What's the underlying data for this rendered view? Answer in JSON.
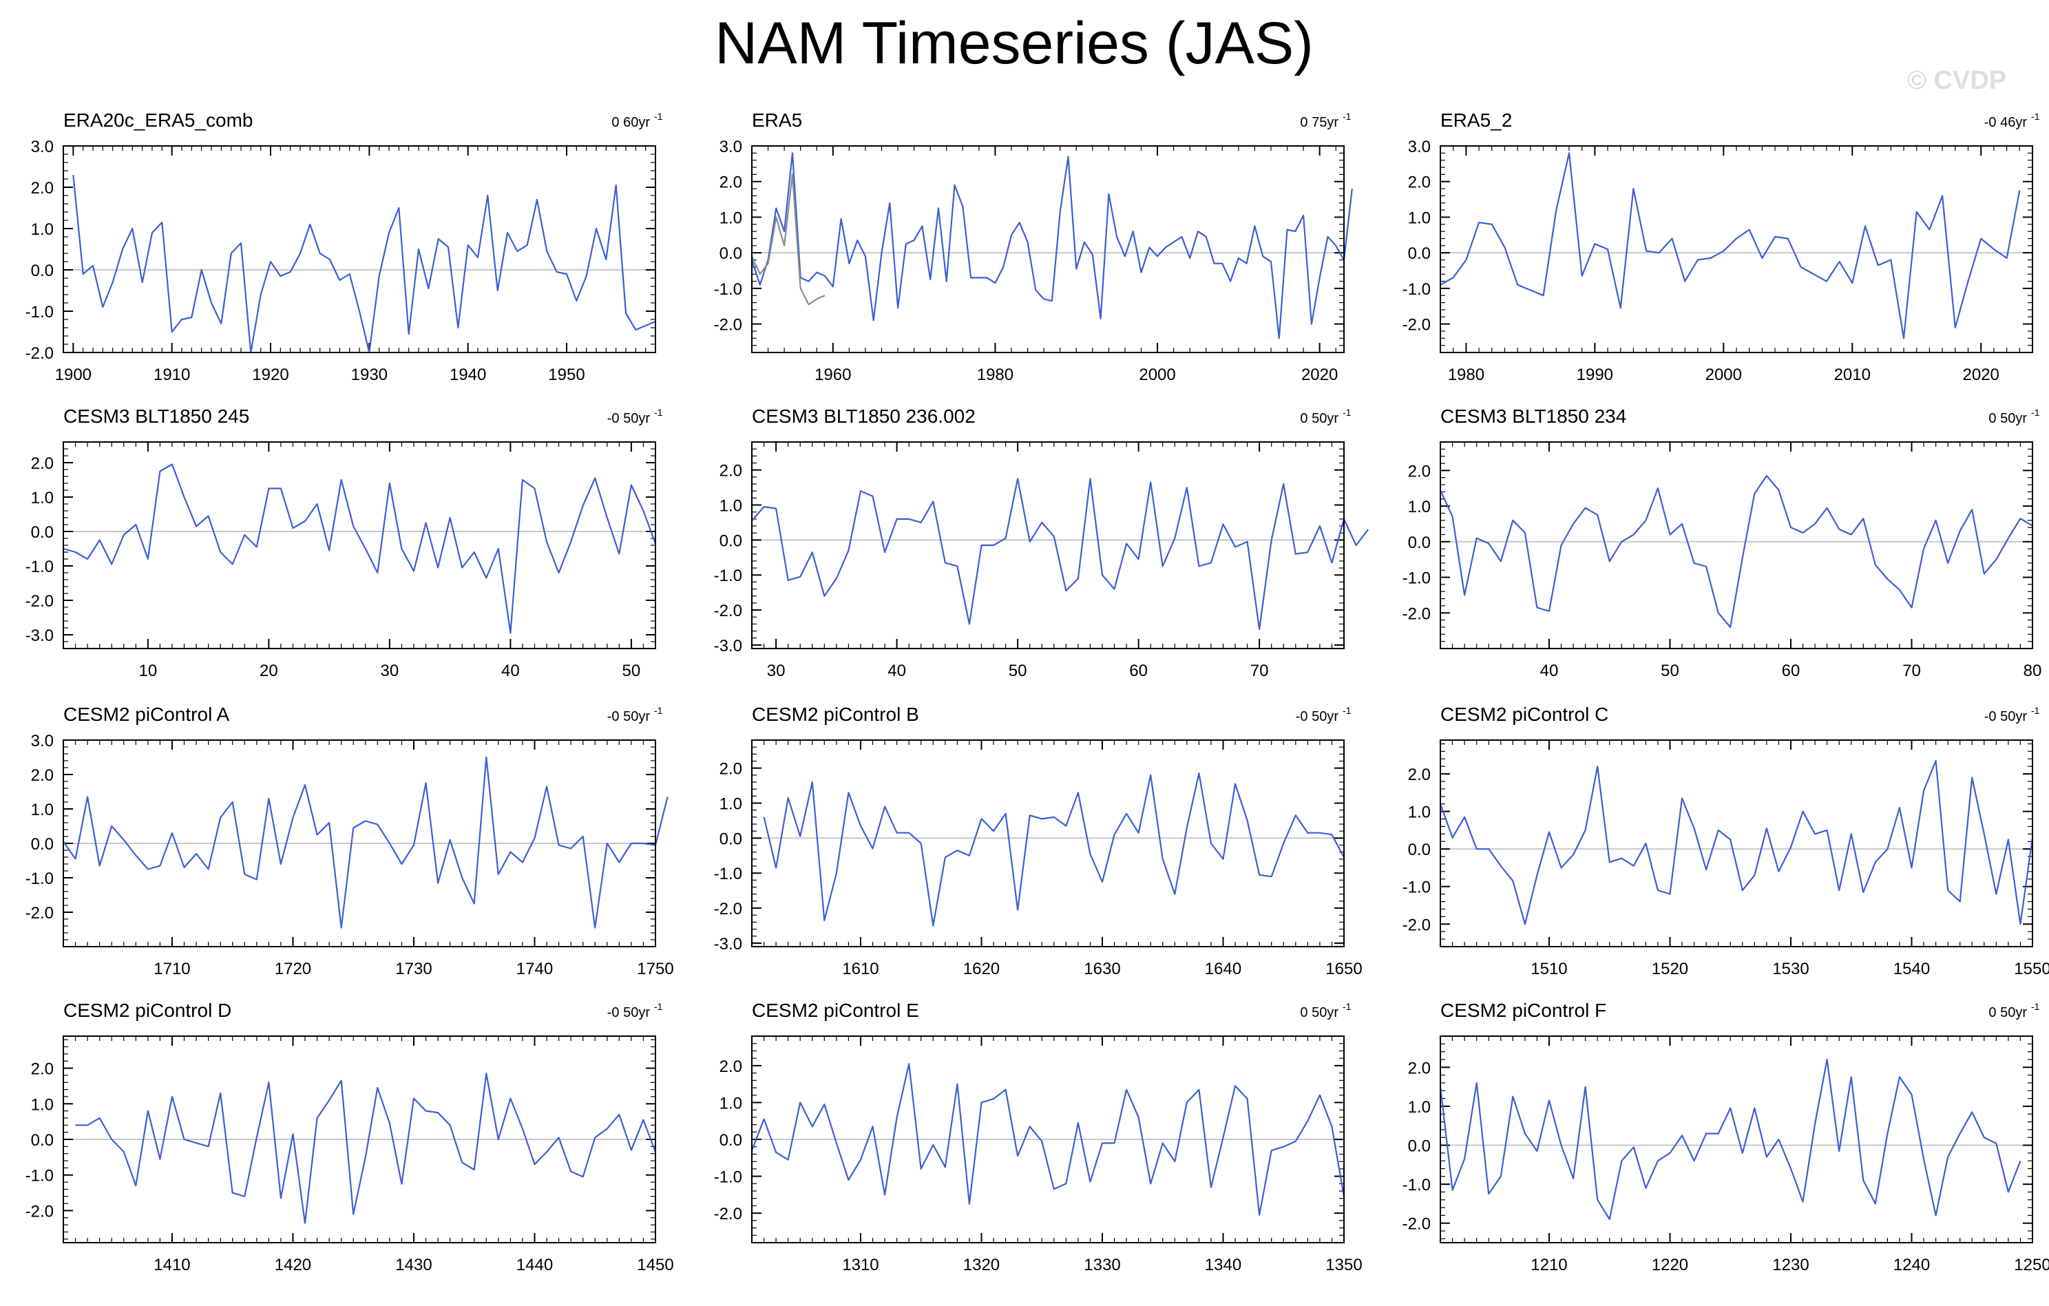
{
  "title": "NAM Timeseries (JAS)",
  "credit": "© CVDP",
  "colors": {
    "line": "#3a5fd6",
    "second_line": "#8c8c8c",
    "zero": "#c8c8c8",
    "frame": "#000000"
  },
  "chart_data": [
    {
      "type": "line",
      "title": "ERA20c_ERA5_comb",
      "trend": "0 60yr",
      "xlabel": "",
      "ylabel": "",
      "xlim": [
        1899,
        1959
      ],
      "ylim": [
        -2,
        3
      ],
      "yticks": [
        3.0,
        2.0,
        1.0,
        0.0,
        -1.0,
        -2.0
      ],
      "xticks": [
        1900,
        1910,
        1920,
        1930,
        1940,
        1950
      ],
      "series": [
        {
          "values": [
            2.3,
            -0.1,
            0.1,
            -0.9,
            -0.3,
            0.5,
            1.0,
            -0.3,
            0.9,
            1.15,
            -1.5,
            -1.2,
            -1.15,
            0.0,
            -0.8,
            -1.3,
            0.4,
            0.65,
            -2.0,
            -0.6,
            0.2,
            -0.15,
            -0.05,
            0.4,
            1.1,
            0.4,
            0.25,
            -0.25,
            -0.1,
            -1.0,
            -2.0,
            -0.15,
            0.9,
            1.5,
            -1.55,
            0.5,
            -0.45,
            0.75,
            0.55,
            -1.4,
            0.6,
            0.3,
            1.8,
            -0.5,
            0.9,
            0.45,
            0.6,
            1.7,
            0.45,
            -0.05,
            -0.1,
            -0.75,
            -0.15,
            1.0,
            0.25,
            2.05,
            -1.05,
            -1.45,
            -1.35,
            -1.25
          ],
          "x0": 1900
        }
      ]
    },
    {
      "type": "line",
      "title": "ERA5",
      "trend": "0 75yr",
      "xlabel": "",
      "ylabel": "",
      "xlim": [
        1950,
        2023
      ],
      "ylim": [
        -2.8,
        3.0
      ],
      "yticks": [
        3.0,
        2.0,
        1.0,
        0.0,
        -1.0,
        -2.0
      ],
      "xticks": [
        1960,
        1980,
        2000,
        2020
      ],
      "series": [
        {
          "values": [
            -0.2,
            -0.9,
            -0.2,
            1.25,
            0.6,
            2.8,
            -0.7,
            -0.8,
            -0.55,
            -0.65,
            -0.95,
            0.95,
            -0.3,
            0.35,
            -0.1,
            -1.9,
            0.0,
            1.4,
            -1.55,
            0.25,
            0.35,
            0.75,
            -0.75,
            1.25,
            -0.8,
            1.9,
            1.3,
            -0.7,
            -0.7,
            -0.7,
            -0.85,
            -0.4,
            0.5,
            0.85,
            0.3,
            -1.05,
            -1.3,
            -1.35,
            1.15,
            2.7,
            -0.45,
            0.3,
            -0.05,
            -1.85,
            1.65,
            0.45,
            -0.1,
            0.6,
            -0.55,
            0.15,
            -0.1,
            0.15,
            0.3,
            0.45,
            -0.15,
            0.6,
            0.45,
            -0.3,
            -0.3,
            -0.8,
            -0.15,
            -0.3,
            0.75,
            -0.1,
            -0.25,
            -2.4,
            0.65,
            0.6,
            1.05,
            -2.0,
            -0.7,
            0.45,
            0.2,
            -0.2,
            1.8
          ],
          "x0": 1950
        },
        {
          "values": [
            -0.1,
            -0.6,
            -0.3,
            1.0,
            0.2,
            2.2,
            -1.0,
            -1.45,
            -1.3,
            -1.2
          ],
          "x0": 1950
        }
      ]
    },
    {
      "type": "line",
      "title": "ERA5_2",
      "trend": "-0 46yr",
      "xlabel": "",
      "ylabel": "",
      "xlim": [
        1978,
        2024
      ],
      "ylim": [
        -2.8,
        3.0
      ],
      "yticks": [
        3.0,
        2.0,
        1.0,
        0.0,
        -1.0,
        -2.0
      ],
      "xticks": [
        1980,
        1990,
        2000,
        2010,
        2020
      ],
      "series": [
        {
          "values": [
            -0.9,
            -0.7,
            -0.2,
            0.85,
            0.8,
            0.15,
            -0.9,
            -1.05,
            -1.2,
            1.2,
            2.8,
            -0.65,
            0.25,
            0.1,
            -1.55,
            1.8,
            0.05,
            0.0,
            0.4,
            -0.8,
            -0.2,
            -0.15,
            0.05,
            0.4,
            0.65,
            -0.15,
            0.45,
            0.4,
            -0.4,
            -0.6,
            -0.8,
            -0.25,
            -0.85,
            0.75,
            -0.35,
            -0.2,
            -2.4,
            1.15,
            0.65,
            1.6,
            -2.1,
            -0.8,
            0.4,
            0.1,
            -0.15,
            1.75
          ],
          "x0": 1978
        }
      ]
    },
    {
      "type": "line",
      "title": "CESM3 BLT1850 245",
      "trend": "-0 50yr",
      "xlabel": "",
      "ylabel": "",
      "xlim": [
        3,
        52
      ],
      "ylim": [
        -3.4,
        2.6
      ],
      "yticks": [
        2.0,
        1.0,
        0.0,
        -1.0,
        -2.0,
        -3.0
      ],
      "xticks": [
        10,
        20,
        30,
        40,
        50
      ],
      "series": [
        {
          "values": [
            -0.5,
            -0.6,
            -0.8,
            -0.25,
            -0.95,
            -0.1,
            0.2,
            -0.8,
            1.75,
            1.95,
            1.0,
            0.15,
            0.45,
            -0.6,
            -0.95,
            -0.1,
            -0.45,
            1.25,
            1.25,
            0.1,
            0.3,
            0.8,
            -0.55,
            1.5,
            0.15,
            -0.5,
            -1.2,
            1.4,
            -0.5,
            -1.15,
            0.25,
            -1.05,
            0.4,
            -1.05,
            -0.6,
            -1.35,
            -0.5,
            -2.95,
            1.5,
            1.25,
            -0.3,
            -1.2,
            -0.3,
            0.75,
            1.55,
            0.4,
            -0.65,
            1.35,
            0.6,
            -0.35
          ],
          "x0": 3
        }
      ]
    },
    {
      "type": "line",
      "title": "CESM3 BLT1850 236.002",
      "trend": "0 50yr",
      "xlabel": "",
      "ylabel": "",
      "xlim": [
        28,
        77
      ],
      "ylim": [
        -3.1,
        2.8
      ],
      "yticks": [
        2.0,
        1.0,
        0.0,
        -1.0,
        -2.0,
        -3.0
      ],
      "xticks": [
        30,
        40,
        50,
        60,
        70
      ],
      "series": [
        {
          "values": [
            0.55,
            0.95,
            0.9,
            -1.15,
            -1.05,
            -0.35,
            -1.6,
            -1.1,
            -0.3,
            1.4,
            1.25,
            -0.35,
            0.6,
            0.6,
            0.5,
            1.1,
            -0.65,
            -0.75,
            -2.4,
            -0.15,
            -0.15,
            0.05,
            1.75,
            -0.05,
            0.5,
            0.1,
            -1.45,
            -1.1,
            1.75,
            -1.0,
            -1.4,
            -0.1,
            -0.55,
            1.65,
            -0.75,
            0.05,
            1.5,
            -0.75,
            -0.65,
            0.45,
            -0.2,
            -0.05,
            -2.55,
            0.0,
            1.6,
            -0.4,
            -0.35,
            0.4,
            -0.65,
            0.6,
            -0.15,
            0.3
          ],
          "x0": 28
        }
      ]
    },
    {
      "type": "line",
      "title": "CESM3 BLT1850 234",
      "trend": "0 50yr",
      "xlabel": "",
      "ylabel": "",
      "xlim": [
        31,
        80
      ],
      "ylim": [
        -3.0,
        2.8
      ],
      "yticks": [
        2.0,
        1.0,
        0.0,
        -1.0,
        -2.0
      ],
      "xticks": [
        40,
        50,
        60,
        70,
        80
      ],
      "series": [
        {
          "values": [
            1.45,
            0.7,
            -1.5,
            0.1,
            -0.05,
            -0.55,
            0.6,
            0.25,
            -1.85,
            -1.95,
            -0.1,
            0.5,
            0.95,
            0.75,
            -0.55,
            0.0,
            0.2,
            0.6,
            1.5,
            0.2,
            0.5,
            -0.6,
            -0.7,
            -2.0,
            -2.4,
            -0.45,
            1.35,
            1.85,
            1.45,
            0.4,
            0.25,
            0.5,
            0.95,
            0.35,
            0.2,
            0.65,
            -0.65,
            -1.05,
            -1.35,
            -1.85,
            -0.2,
            0.6,
            -0.6,
            0.3,
            0.9,
            -0.9,
            -0.5,
            0.1,
            0.65,
            0.45
          ],
          "x0": 31
        }
      ]
    },
    {
      "type": "line",
      "title": "CESM2 piControl A",
      "trend": "-0 50yr",
      "xlabel": "",
      "ylabel": "",
      "xlim": [
        1701,
        1750
      ],
      "ylim": [
        -3.0,
        3.0
      ],
      "yticks": [
        3.0,
        2.0,
        1.0,
        0.0,
        -1.0,
        -2.0
      ],
      "xticks": [
        1710,
        1720,
        1730,
        1740,
        1750
      ],
      "series": [
        {
          "values": [
            0.05,
            -0.45,
            1.35,
            -0.65,
            0.5,
            0.1,
            -0.35,
            -0.75,
            -0.65,
            0.3,
            -0.7,
            -0.3,
            -0.75,
            0.75,
            1.2,
            -0.9,
            -1.05,
            1.3,
            -0.6,
            0.75,
            1.7,
            0.25,
            0.6,
            -2.45,
            0.45,
            0.65,
            0.55,
            0.0,
            -0.6,
            -0.05,
            1.75,
            -1.15,
            0.1,
            -1.0,
            -1.75,
            2.5,
            -0.9,
            -0.25,
            -0.55,
            0.15,
            1.65,
            -0.05,
            -0.15,
            0.2,
            -2.45,
            0.0,
            -0.55,
            0.0,
            0.0,
            -0.05,
            1.35
          ],
          "x0": 1701
        }
      ]
    },
    {
      "type": "line",
      "title": "CESM2 piControl B",
      "trend": "-0 50yr",
      "xlabel": "",
      "ylabel": "",
      "xlim": [
        1601,
        1650
      ],
      "ylim": [
        -3.1,
        2.8
      ],
      "yticks": [
        2.0,
        1.0,
        0.0,
        -1.0,
        -2.0,
        -3.0
      ],
      "xticks": [
        1610,
        1620,
        1630,
        1640,
        1650
      ],
      "series": [
        {
          "values": [
            0.6,
            -0.85,
            1.15,
            0.05,
            1.6,
            -2.35,
            -1.0,
            1.3,
            0.35,
            -0.3,
            0.9,
            0.15,
            0.15,
            -0.15,
            -2.5,
            -0.55,
            -0.35,
            -0.5,
            0.55,
            0.2,
            0.7,
            -2.05,
            0.65,
            0.55,
            0.6,
            0.35,
            1.3,
            -0.45,
            -1.25,
            0.1,
            0.7,
            0.15,
            1.8,
            -0.6,
            -1.6,
            0.3,
            1.85,
            -0.15,
            -0.6,
            1.55,
            0.5,
            -1.05,
            -1.1,
            -0.15,
            0.65,
            0.15,
            0.15,
            0.1,
            -0.55
          ],
          "x0": 1602
        }
      ]
    },
    {
      "type": "line",
      "title": "CESM2 piControl C",
      "trend": "-0 50yr",
      "xlabel": "",
      "ylabel": "",
      "xlim": [
        1501,
        1550
      ],
      "ylim": [
        -2.6,
        2.9
      ],
      "yticks": [
        2.0,
        1.0,
        0.0,
        -1.0,
        -2.0
      ],
      "xticks": [
        1510,
        1520,
        1530,
        1540,
        1550
      ],
      "series": [
        {
          "values": [
            1.2,
            0.3,
            0.85,
            0.0,
            0.0,
            -0.45,
            -0.85,
            -2.0,
            -0.7,
            0.45,
            -0.5,
            -0.15,
            0.5,
            2.2,
            -0.35,
            -0.25,
            -0.45,
            0.15,
            -1.1,
            -1.2,
            1.35,
            0.55,
            -0.55,
            0.5,
            0.25,
            -1.1,
            -0.7,
            0.55,
            -0.6,
            0.05,
            1.0,
            0.4,
            0.5,
            -1.1,
            0.4,
            -1.15,
            -0.35,
            0.0,
            1.1,
            -0.5,
            1.55,
            2.35,
            -1.1,
            -1.4,
            1.9,
            0.4,
            -1.2,
            0.25,
            -2.0,
            0.3
          ],
          "x0": 1501
        }
      ]
    },
    {
      "type": "line",
      "title": "CESM2 piControl D",
      "trend": "-0 50yr",
      "xlabel": "",
      "ylabel": "",
      "xlim": [
        1401,
        1450
      ],
      "ylim": [
        -2.9,
        2.9
      ],
      "yticks": [
        2.0,
        1.0,
        0.0,
        -1.0,
        -2.0
      ],
      "xticks": [
        1410,
        1420,
        1430,
        1440,
        1450
      ],
      "series": [
        {
          "values": [
            0.4,
            0.4,
            0.6,
            0.0,
            -0.35,
            -1.3,
            0.8,
            -0.55,
            1.2,
            0.0,
            -0.1,
            -0.2,
            1.3,
            -1.5,
            -1.6,
            0.05,
            1.6,
            -1.65,
            0.15,
            -2.35,
            0.6,
            1.1,
            1.65,
            -2.1,
            -0.5,
            1.45,
            0.45,
            -1.25,
            1.15,
            0.8,
            0.75,
            0.4,
            -0.65,
            -0.85,
            1.85,
            0.0,
            1.15,
            0.3,
            -0.7,
            -0.35,
            0.05,
            -0.9,
            -1.05,
            0.05,
            0.3,
            0.7,
            -0.3,
            0.55,
            -0.35
          ],
          "x0": 1402
        }
      ]
    },
    {
      "type": "line",
      "title": "CESM2 piControl E",
      "trend": "0 50yr",
      "xlabel": "",
      "ylabel": "",
      "xlim": [
        1301,
        1350
      ],
      "ylim": [
        -2.8,
        2.8
      ],
      "yticks": [
        2.0,
        1.0,
        0.0,
        -1.0,
        -2.0
      ],
      "xticks": [
        1310,
        1320,
        1330,
        1340,
        1350
      ],
      "series": [
        {
          "values": [
            -0.3,
            0.55,
            -0.35,
            -0.55,
            1.0,
            0.35,
            0.95,
            -0.1,
            -1.1,
            -0.55,
            0.35,
            -1.5,
            0.6,
            2.05,
            -0.8,
            -0.15,
            -0.75,
            1.5,
            -1.75,
            1.0,
            1.1,
            1.35,
            -0.45,
            0.35,
            -0.05,
            -1.35,
            -1.2,
            0.45,
            -1.15,
            -0.1,
            -0.1,
            1.35,
            0.6,
            -1.2,
            -0.1,
            -0.6,
            1.0,
            1.35,
            -1.3,
            0.05,
            1.45,
            1.1,
            -2.05,
            -0.3,
            -0.2,
            -0.05,
            0.5,
            1.2,
            0.35,
            -1.55
          ],
          "x0": 1301
        }
      ]
    },
    {
      "type": "line",
      "title": "CESM2 piControl F",
      "trend": "0 50yr",
      "xlabel": "",
      "ylabel": "",
      "xlim": [
        1201,
        1250
      ],
      "ylim": [
        -2.5,
        2.8
      ],
      "yticks": [
        2.0,
        1.0,
        0.0,
        -1.0,
        -2.0
      ],
      "xticks": [
        1210,
        1220,
        1230,
        1240,
        1250
      ],
      "series": [
        {
          "values": [
            1.5,
            -1.15,
            -0.35,
            1.6,
            -1.25,
            -0.8,
            1.25,
            0.3,
            -0.15,
            1.15,
            0.0,
            -0.85,
            1.5,
            -1.4,
            -1.9,
            -0.4,
            -0.05,
            -1.1,
            -0.4,
            -0.2,
            0.25,
            -0.4,
            0.3,
            0.3,
            0.95,
            -0.2,
            0.95,
            -0.3,
            0.15,
            -0.6,
            -1.45,
            0.55,
            2.2,
            -0.15,
            1.75,
            -0.9,
            -1.5,
            0.3,
            1.75,
            1.3,
            -0.35,
            -1.8,
            -0.3,
            0.3,
            0.85,
            0.2,
            0.05,
            -1.2,
            -0.4
          ],
          "x0": 1201
        }
      ]
    }
  ]
}
